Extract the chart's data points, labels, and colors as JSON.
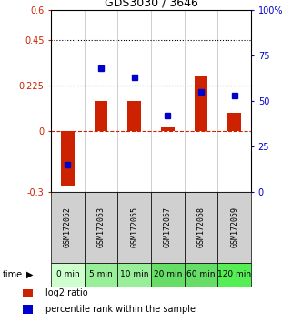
{
  "title": "GDS3030 / 3646",
  "samples": [
    "GSM172052",
    "GSM172053",
    "GSM172055",
    "GSM172057",
    "GSM172058",
    "GSM172059"
  ],
  "time_labels": [
    "0 min",
    "5 min",
    "10 min",
    "20 min",
    "60 min",
    "120 min"
  ],
  "log2_ratio": [
    -0.27,
    0.15,
    0.15,
    0.02,
    0.27,
    0.09
  ],
  "percentile_rank": [
    15,
    68,
    63,
    42,
    55,
    53
  ],
  "ylim_left": [
    -0.3,
    0.6
  ],
  "ylim_right": [
    0,
    100
  ],
  "yticks_left": [
    -0.3,
    0,
    0.225,
    0.45,
    0.6
  ],
  "yticks_right": [
    0,
    25,
    50,
    75,
    100
  ],
  "ytick_labels_left": [
    "-0.3",
    "0",
    "0.225",
    "0.45",
    "0.6"
  ],
  "ytick_labels_right": [
    "0",
    "25",
    "50",
    "75",
    "100%"
  ],
  "hlines": [
    0.225,
    0.45
  ],
  "bar_color": "#cc2200",
  "dot_color": "#0000cc",
  "dashed_color": "#cc2200",
  "sample_bg_color": "#d0d0d0",
  "time_colors": [
    "#ccffcc",
    "#99ee99",
    "#99ee99",
    "#66dd66",
    "#66dd66",
    "#55ee55"
  ],
  "bar_width": 0.4,
  "legend_red_label": "log2 ratio",
  "legend_blue_label": "percentile rank within the sample",
  "dot_marker_size": 4,
  "title_fontsize": 9,
  "tick_fontsize": 7,
  "sample_fontsize": 6,
  "time_fontsize": 6.5
}
